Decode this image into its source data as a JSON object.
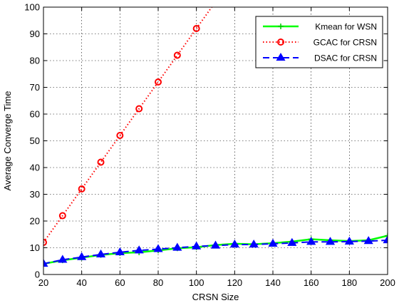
{
  "chart_data": {
    "type": "line",
    "title": "",
    "xlabel": "CRSN Size",
    "ylabel": "Average Converge Time",
    "xlim": [
      20,
      200
    ],
    "ylim": [
      0,
      100
    ],
    "xticks": [
      20,
      40,
      60,
      80,
      100,
      120,
      140,
      160,
      180,
      200
    ],
    "yticks": [
      0,
      10,
      20,
      30,
      40,
      50,
      60,
      70,
      80,
      90,
      100
    ],
    "grid": true,
    "legend_position": "top-right",
    "series": [
      {
        "name": "Kmean for WSN",
        "color": "#00ff00",
        "line_style": "solid",
        "marker": "plus",
        "marker_color": "#00cc00",
        "x": [
          20,
          30,
          40,
          50,
          60,
          70,
          80,
          90,
          100,
          110,
          120,
          130,
          140,
          150,
          160,
          170,
          180,
          190,
          200
        ],
        "y": [
          4,
          5.3,
          6.3,
          7.3,
          8,
          8.3,
          9,
          9.8,
          10.2,
          11,
          11.5,
          11.3,
          11.7,
          12.3,
          13.2,
          12.8,
          12.5,
          12.8,
          14.5
        ]
      },
      {
        "name": "GCAC for CRSN",
        "color": "#ff0000",
        "line_style": "dotted",
        "marker": "circle",
        "marker_color": "#ff0000",
        "x": [
          20,
          30,
          40,
          50,
          60,
          70,
          80,
          90,
          100,
          110
        ],
        "y": [
          12,
          22,
          32,
          42,
          52,
          62,
          72,
          82,
          92,
          102
        ],
        "marker_count": 9
      },
      {
        "name": "DSAC for CRSN",
        "color": "#0000ff",
        "line_style": "dashed",
        "marker": "triangle",
        "marker_color": "#0000ff",
        "x": [
          20,
          30,
          40,
          50,
          60,
          70,
          80,
          90,
          100,
          110,
          120,
          130,
          140,
          150,
          160,
          170,
          180,
          190,
          200
        ],
        "y": [
          4,
          5.5,
          6.5,
          7.5,
          8.3,
          9,
          9.5,
          10,
          10.5,
          10.8,
          11.2,
          11.2,
          11.5,
          11.8,
          12.2,
          12.2,
          12.3,
          12.5,
          12.8
        ]
      }
    ]
  }
}
